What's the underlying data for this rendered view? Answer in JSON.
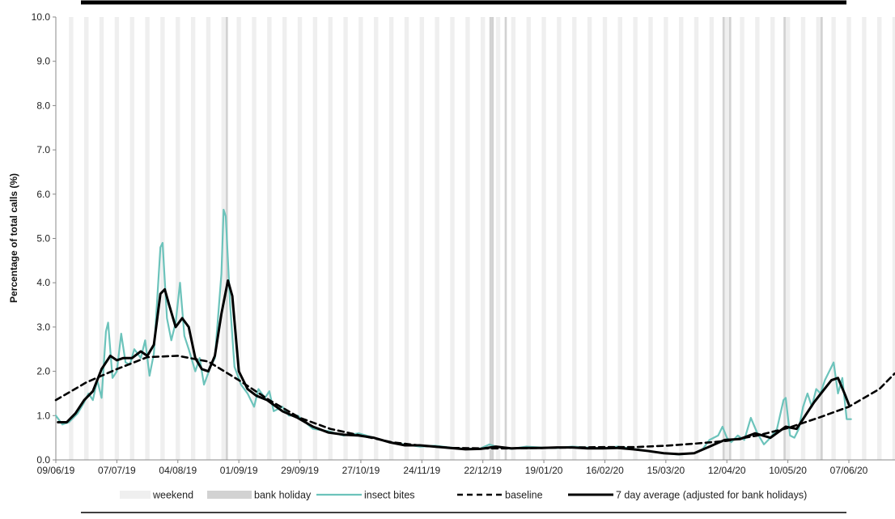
{
  "chart_data": {
    "type": "line",
    "ylabel": "Percentage of total calls (%)",
    "xlabel": "",
    "ylim": [
      0,
      10
    ],
    "yticks": [
      "0.0",
      "1.0",
      "2.0",
      "3.0",
      "4.0",
      "5.0",
      "6.0",
      "7.0",
      "8.0",
      "9.0",
      "10.0"
    ],
    "xlim": [
      "2019-06-09",
      "2020-06-28"
    ],
    "xticks": [
      "09/06/19",
      "07/07/19",
      "04/08/19",
      "01/09/19",
      "29/09/19",
      "27/10/19",
      "24/11/19",
      "22/12/19",
      "19/01/20",
      "16/02/20",
      "15/03/20",
      "12/04/20",
      "10/05/20",
      "07/06/20"
    ],
    "bank_holidays": [
      "2019-08-26",
      "2019-12-25",
      "2019-12-26",
      "2020-01-01",
      "2020-04-10",
      "2020-04-13",
      "2020-05-08",
      "2020-05-25"
    ],
    "weekend_shading": "Saturdays and Sundays",
    "grid": false,
    "legend_position": "bottom",
    "legend": [
      {
        "label": "weekend",
        "kind": "band",
        "color": "#efefef"
      },
      {
        "label": "bank holiday",
        "kind": "band",
        "color": "#d2d2d2"
      },
      {
        "label": "insect bites",
        "kind": "line",
        "color": "#6cc3bb"
      },
      {
        "label": "baseline",
        "kind": "dashed",
        "color": "#000000"
      },
      {
        "label": "7 day average (adjusted for bank holidays)",
        "kind": "thick",
        "color": "#000000"
      }
    ],
    "series": [
      {
        "name": "insect bites",
        "color": "#6cc3bb",
        "points": [
          [
            "2019-06-09",
            1.0
          ],
          [
            "2019-06-12",
            0.8
          ],
          [
            "2019-06-15",
            0.85
          ],
          [
            "2019-06-19",
            1.05
          ],
          [
            "2019-06-22",
            1.3
          ],
          [
            "2019-06-24",
            1.5
          ],
          [
            "2019-06-26",
            1.35
          ],
          [
            "2019-06-28",
            1.8
          ],
          [
            "2019-06-30",
            1.4
          ],
          [
            "2019-07-02",
            2.9
          ],
          [
            "2019-07-03",
            3.1
          ],
          [
            "2019-07-05",
            1.85
          ],
          [
            "2019-07-07",
            2.0
          ],
          [
            "2019-07-09",
            2.85
          ],
          [
            "2019-07-11",
            2.2
          ],
          [
            "2019-07-13",
            2.15
          ],
          [
            "2019-07-15",
            2.5
          ],
          [
            "2019-07-18",
            2.3
          ],
          [
            "2019-07-20",
            2.7
          ],
          [
            "2019-07-22",
            1.9
          ],
          [
            "2019-07-24",
            2.4
          ],
          [
            "2019-07-27",
            4.8
          ],
          [
            "2019-07-28",
            4.9
          ],
          [
            "2019-07-30",
            3.2
          ],
          [
            "2019-08-01",
            2.7
          ],
          [
            "2019-08-03",
            3.1
          ],
          [
            "2019-08-05",
            4.0
          ],
          [
            "2019-08-07",
            2.8
          ],
          [
            "2019-08-09",
            2.5
          ],
          [
            "2019-08-12",
            2.0
          ],
          [
            "2019-08-14",
            2.3
          ],
          [
            "2019-08-16",
            1.7
          ],
          [
            "2019-08-19",
            2.1
          ],
          [
            "2019-08-21",
            2.3
          ],
          [
            "2019-08-24",
            4.2
          ],
          [
            "2019-08-25",
            5.65
          ],
          [
            "2019-08-26",
            5.5
          ],
          [
            "2019-08-28",
            3.5
          ],
          [
            "2019-08-30",
            2.1
          ],
          [
            "2019-09-02",
            1.7
          ],
          [
            "2019-09-05",
            1.5
          ],
          [
            "2019-09-08",
            1.2
          ],
          [
            "2019-09-10",
            1.6
          ],
          [
            "2019-09-13",
            1.4
          ],
          [
            "2019-09-15",
            1.55
          ],
          [
            "2019-09-17",
            1.1
          ],
          [
            "2019-09-21",
            1.2
          ],
          [
            "2019-09-24",
            1.0
          ],
          [
            "2019-09-28",
            1.0
          ],
          [
            "2019-10-05",
            0.7
          ],
          [
            "2019-10-12",
            0.65
          ],
          [
            "2019-10-19",
            0.55
          ],
          [
            "2019-10-26",
            0.6
          ],
          [
            "2019-11-02",
            0.5
          ],
          [
            "2019-11-09",
            0.4
          ],
          [
            "2019-11-16",
            0.35
          ],
          [
            "2019-11-23",
            0.3
          ],
          [
            "2019-11-30",
            0.32
          ],
          [
            "2019-12-07",
            0.28
          ],
          [
            "2019-12-14",
            0.25
          ],
          [
            "2019-12-21",
            0.26
          ],
          [
            "2019-12-25",
            0.35
          ],
          [
            "2019-12-28",
            0.3
          ],
          [
            "2020-01-04",
            0.25
          ],
          [
            "2020-01-11",
            0.3
          ],
          [
            "2020-01-18",
            0.28
          ],
          [
            "2020-01-25",
            0.27
          ],
          [
            "2020-02-01",
            0.3
          ],
          [
            "2020-02-08",
            0.28
          ],
          [
            "2020-02-15",
            0.26
          ],
          [
            "2020-02-22",
            0.3
          ],
          [
            "2020-02-29",
            0.25
          ],
          [
            "2020-03-07",
            0.2
          ],
          [
            "2020-03-14",
            0.15
          ],
          [
            "2020-03-21",
            0.12
          ],
          [
            "2020-03-28",
            0.15
          ],
          [
            "2020-04-01",
            0.25
          ],
          [
            "2020-04-04",
            0.45
          ],
          [
            "2020-04-08",
            0.55
          ],
          [
            "2020-04-10",
            0.75
          ],
          [
            "2020-04-12",
            0.5
          ],
          [
            "2020-04-14",
            0.4
          ],
          [
            "2020-04-17",
            0.55
          ],
          [
            "2020-04-20",
            0.45
          ],
          [
            "2020-04-23",
            0.95
          ],
          [
            "2020-04-26",
            0.6
          ],
          [
            "2020-04-29",
            0.35
          ],
          [
            "2020-05-02",
            0.5
          ],
          [
            "2020-05-05",
            0.7
          ],
          [
            "2020-05-08",
            1.35
          ],
          [
            "2020-05-09",
            1.4
          ],
          [
            "2020-05-11",
            0.55
          ],
          [
            "2020-05-13",
            0.5
          ],
          [
            "2020-05-15",
            0.7
          ],
          [
            "2020-05-17",
            1.2
          ],
          [
            "2020-05-19",
            1.5
          ],
          [
            "2020-05-21",
            1.2
          ],
          [
            "2020-05-23",
            1.6
          ],
          [
            "2020-05-25",
            1.5
          ],
          [
            "2020-05-27",
            1.8
          ],
          [
            "2020-05-29",
            2.0
          ],
          [
            "2020-05-31",
            2.2
          ],
          [
            "2020-06-02",
            1.5
          ],
          [
            "2020-06-04",
            1.85
          ],
          [
            "2020-06-06",
            0.92
          ],
          [
            "2020-06-08",
            0.92
          ]
        ]
      },
      {
        "name": "baseline",
        "color": "#000000",
        "points": [
          [
            "2019-06-09",
            1.35
          ],
          [
            "2019-06-23",
            1.75
          ],
          [
            "2019-07-07",
            2.05
          ],
          [
            "2019-07-21",
            2.32
          ],
          [
            "2019-08-04",
            2.35
          ],
          [
            "2019-08-18",
            2.22
          ],
          [
            "2019-09-01",
            1.8
          ],
          [
            "2019-09-15",
            1.35
          ],
          [
            "2019-09-29",
            0.95
          ],
          [
            "2019-10-13",
            0.7
          ],
          [
            "2019-10-27",
            0.55
          ],
          [
            "2019-11-10",
            0.4
          ],
          [
            "2019-11-24",
            0.32
          ],
          [
            "2019-12-08",
            0.27
          ],
          [
            "2019-12-22",
            0.26
          ],
          [
            "2020-01-05",
            0.26
          ],
          [
            "2020-01-19",
            0.27
          ],
          [
            "2020-02-02",
            0.28
          ],
          [
            "2020-02-16",
            0.29
          ],
          [
            "2020-03-01",
            0.29
          ],
          [
            "2020-03-15",
            0.32
          ],
          [
            "2020-03-29",
            0.37
          ],
          [
            "2020-04-12",
            0.43
          ],
          [
            "2020-04-26",
            0.55
          ],
          [
            "2020-05-10",
            0.72
          ],
          [
            "2020-05-24",
            0.95
          ],
          [
            "2020-06-07",
            1.2
          ],
          [
            "2020-06-21",
            1.6
          ],
          [
            "2020-06-28",
            1.95
          ]
        ]
      },
      {
        "name": "7 day average (adjusted for bank holidays)",
        "color": "#000000",
        "points": [
          [
            "2019-06-10",
            0.85
          ],
          [
            "2019-06-14",
            0.85
          ],
          [
            "2019-06-18",
            1.05
          ],
          [
            "2019-06-22",
            1.35
          ],
          [
            "2019-06-26",
            1.55
          ],
          [
            "2019-06-30",
            2.05
          ],
          [
            "2019-07-04",
            2.35
          ],
          [
            "2019-07-07",
            2.25
          ],
          [
            "2019-07-10",
            2.3
          ],
          [
            "2019-07-14",
            2.3
          ],
          [
            "2019-07-18",
            2.45
          ],
          [
            "2019-07-21",
            2.35
          ],
          [
            "2019-07-24",
            2.6
          ],
          [
            "2019-07-27",
            3.75
          ],
          [
            "2019-07-29",
            3.85
          ],
          [
            "2019-07-31",
            3.5
          ],
          [
            "2019-08-03",
            3.0
          ],
          [
            "2019-08-06",
            3.2
          ],
          [
            "2019-08-09",
            3.0
          ],
          [
            "2019-08-12",
            2.3
          ],
          [
            "2019-08-15",
            2.05
          ],
          [
            "2019-08-18",
            2.0
          ],
          [
            "2019-08-21",
            2.35
          ],
          [
            "2019-08-24",
            3.3
          ],
          [
            "2019-08-27",
            4.05
          ],
          [
            "2019-08-29",
            3.7
          ],
          [
            "2019-09-01",
            2.0
          ],
          [
            "2019-09-05",
            1.6
          ],
          [
            "2019-09-09",
            1.45
          ],
          [
            "2019-09-14",
            1.35
          ],
          [
            "2019-09-21",
            1.1
          ],
          [
            "2019-09-28",
            0.95
          ],
          [
            "2019-10-05",
            0.75
          ],
          [
            "2019-10-12",
            0.62
          ],
          [
            "2019-10-19",
            0.57
          ],
          [
            "2019-10-26",
            0.55
          ],
          [
            "2019-11-02",
            0.5
          ],
          [
            "2019-11-09",
            0.4
          ],
          [
            "2019-11-16",
            0.33
          ],
          [
            "2019-11-23",
            0.33
          ],
          [
            "2019-11-30",
            0.3
          ],
          [
            "2019-12-07",
            0.27
          ],
          [
            "2019-12-14",
            0.24
          ],
          [
            "2019-12-21",
            0.25
          ],
          [
            "2019-12-28",
            0.3
          ],
          [
            "2020-01-04",
            0.26
          ],
          [
            "2020-01-11",
            0.27
          ],
          [
            "2020-01-18",
            0.27
          ],
          [
            "2020-01-25",
            0.28
          ],
          [
            "2020-02-01",
            0.28
          ],
          [
            "2020-02-08",
            0.26
          ],
          [
            "2020-02-15",
            0.26
          ],
          [
            "2020-02-22",
            0.27
          ],
          [
            "2020-02-29",
            0.24
          ],
          [
            "2020-03-07",
            0.2
          ],
          [
            "2020-03-14",
            0.15
          ],
          [
            "2020-03-21",
            0.13
          ],
          [
            "2020-03-28",
            0.15
          ],
          [
            "2020-04-04",
            0.3
          ],
          [
            "2020-04-11",
            0.45
          ],
          [
            "2020-04-18",
            0.47
          ],
          [
            "2020-04-25",
            0.6
          ],
          [
            "2020-05-02",
            0.5
          ],
          [
            "2020-05-09",
            0.75
          ],
          [
            "2020-05-14",
            0.7
          ],
          [
            "2020-05-18",
            1.0
          ],
          [
            "2020-05-22",
            1.3
          ],
          [
            "2020-05-26",
            1.55
          ],
          [
            "2020-05-30",
            1.8
          ],
          [
            "2020-06-02",
            1.85
          ],
          [
            "2020-06-05",
            1.5
          ],
          [
            "2020-06-07",
            1.25
          ]
        ]
      }
    ]
  }
}
